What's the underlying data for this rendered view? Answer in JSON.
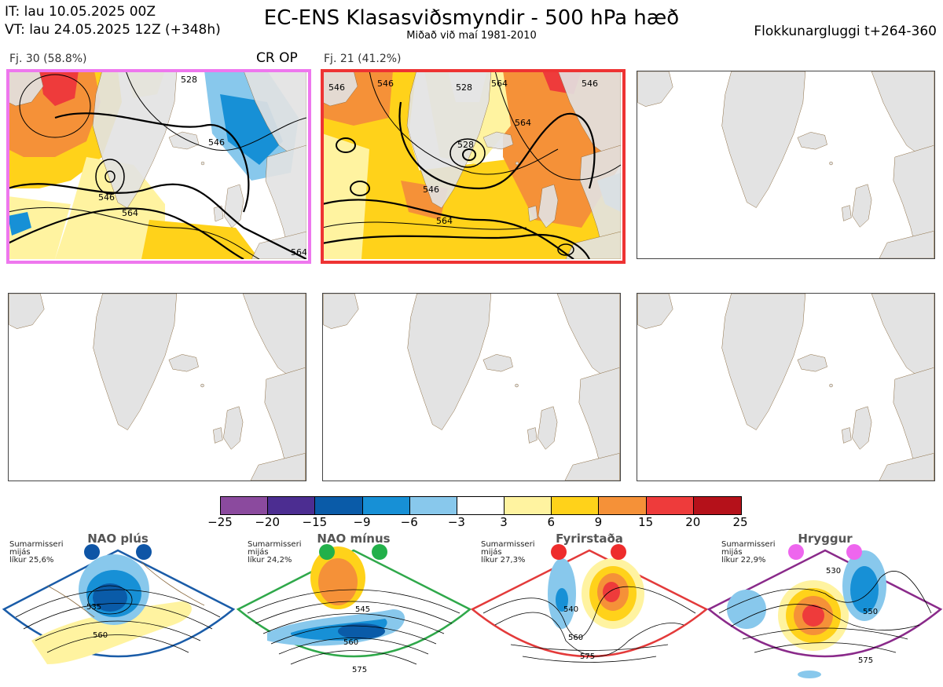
{
  "header": {
    "it_line": "IT: lau 10.05.2025 00Z",
    "vt_line": "VT: lau 24.05.2025 12Z  (+348h)",
    "title": "EC-ENS Klasasviðsmyndir - 500 hPa hæð",
    "subtitle": "Miðað við maí 1981-2010",
    "window_label": "Flokkunargluggi t+264-360"
  },
  "panels": [
    {
      "caption": "Fj. 30 (58.8%)",
      "tag": "CR OP",
      "border_color": "#ee77ee",
      "contour_labels": [
        "528",
        "546",
        "546",
        "564",
        "564"
      ]
    },
    {
      "caption": "Fj. 21 (41.2%)",
      "tag": "",
      "border_color": "#ee3333",
      "contour_labels": [
        "546",
        "528",
        "546",
        "564",
        "528",
        "546",
        "564",
        "546",
        "564"
      ]
    },
    {
      "caption": "",
      "tag": "",
      "border_color": "#444444",
      "contour_labels": []
    },
    {
      "caption": "",
      "tag": "",
      "border_color": "#444444",
      "contour_labels": []
    },
    {
      "caption": "",
      "tag": "",
      "border_color": "#444444",
      "contour_labels": []
    },
    {
      "caption": "",
      "tag": "",
      "border_color": "#444444",
      "contour_labels": []
    }
  ],
  "colorbar": {
    "ticks": [
      "−25",
      "−20",
      "−15",
      "−9",
      "−6",
      "−3",
      "3",
      "6",
      "9",
      "15",
      "20",
      "25"
    ],
    "colors": [
      "#8b4a9e",
      "#4c2d91",
      "#0a5ba8",
      "#1790d6",
      "#88c8ec",
      "#ffffff",
      "#fff3a0",
      "#ffd21a",
      "#f59138",
      "#ee3b3b",
      "#b5111a"
    ]
  },
  "regimes": [
    {
      "name": "NAO plús",
      "line1": "Sumarmisseri",
      "line2": "mijás",
      "line3": "líkur 25,6%",
      "color": "#1a5ca8",
      "dot_color": "#0e55a6",
      "labels": [
        "535",
        "560"
      ]
    },
    {
      "name": "NAO mínus",
      "line1": "Sumarmisseri",
      "line2": "mijás",
      "line3": "líkur 24,2%",
      "color": "#2fa84a",
      "dot_color": "#22b04a",
      "labels": [
        "545",
        "560",
        "575"
      ]
    },
    {
      "name": "Fyrirstaða",
      "line1": "Sumarmisseri",
      "line2": "mijás",
      "line3": "líkur 27,3%",
      "color": "#e33a3a",
      "dot_color": "#ee2c2c",
      "labels": [
        "540",
        "560",
        "575"
      ]
    },
    {
      "name": "Hryggur",
      "line1": "Sumarmisseri",
      "line2": "mijás",
      "line3": "líkur 22,9%",
      "color": "#8a2a8a",
      "dot_color": "#ee66ee",
      "labels": [
        "530",
        "550",
        "575"
      ]
    }
  ],
  "chart_data": {
    "type": "heatmap",
    "title": "EC-ENS Klasasviðsmyndir - 500 hPa hæð",
    "subtitle": "Miðað við maí 1981-2010",
    "clusters": [
      {
        "name": "Fj. 30",
        "percent": 58.8,
        "members": 30,
        "contours_dam": [
          528,
          546,
          564
        ]
      },
      {
        "name": "Fj. 21",
        "percent": 41.2,
        "members": 21,
        "contours_dam": [
          528,
          546,
          564
        ]
      }
    ],
    "colorbar_levels": [
      -25,
      -20,
      -15,
      -9,
      -6,
      -3,
      3,
      6,
      9,
      15,
      20,
      25
    ],
    "regime_probabilities": [
      {
        "regime": "NAO plús",
        "percent": 25.6
      },
      {
        "regime": "NAO mínus",
        "percent": 24.2
      },
      {
        "regime": "Fyrirstaða",
        "percent": 27.3
      },
      {
        "regime": "Hryggur",
        "percent": 22.9
      }
    ]
  }
}
